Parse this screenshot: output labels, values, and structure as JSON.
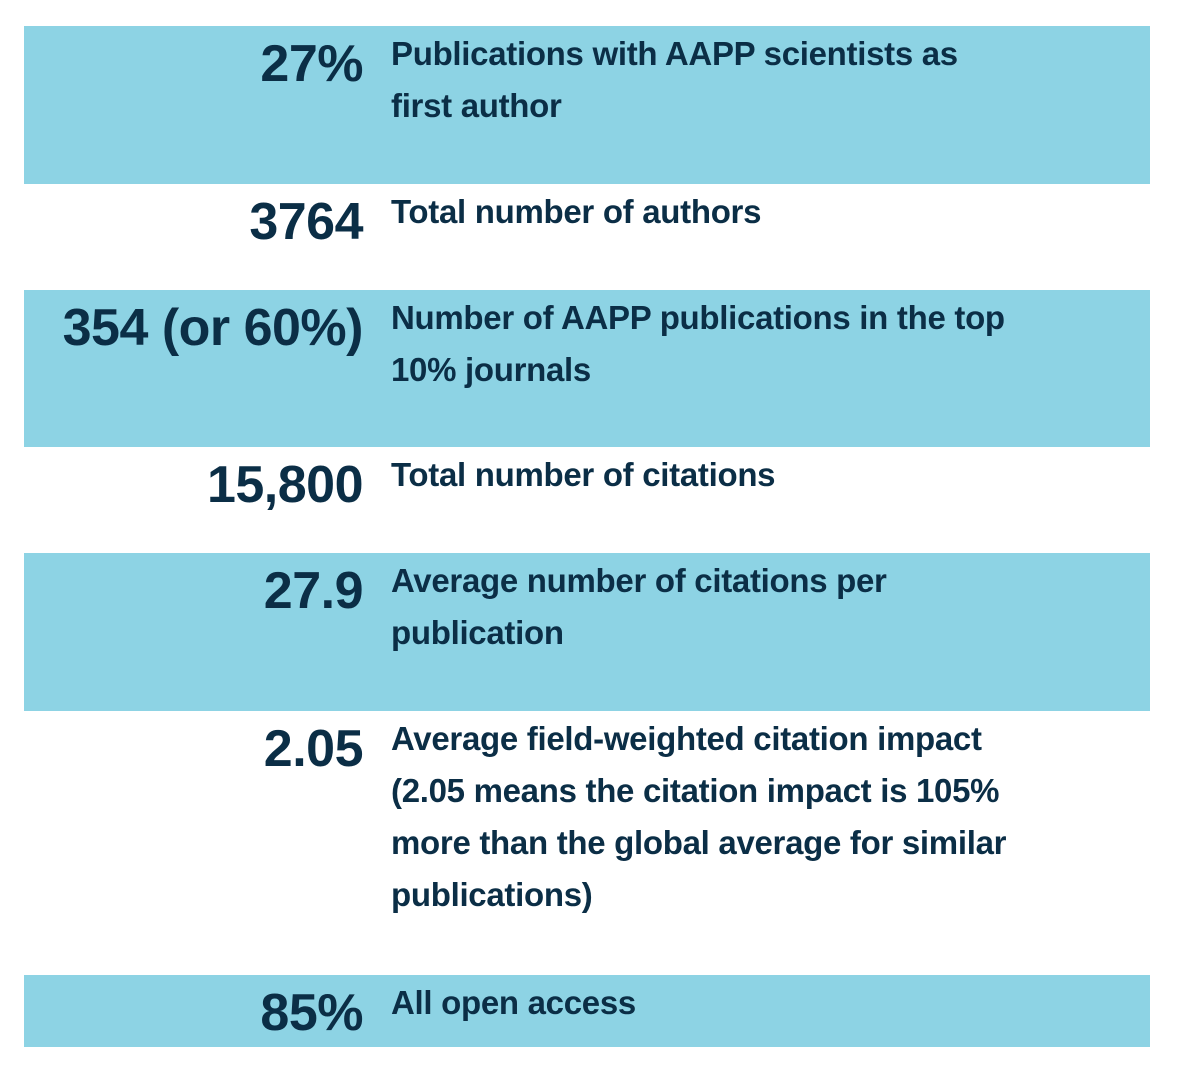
{
  "colors": {
    "highlight": "#8dd3e4",
    "text": "#0b2e46"
  },
  "rows": [
    {
      "value": "27%",
      "label_lines": [
        "Publications with AAPP scientists as",
        "first author"
      ]
    },
    {
      "value": "3764",
      "label_lines": [
        "Total number of authors"
      ]
    },
    {
      "value": "354 (or 60%)",
      "label_lines": [
        "Number of AAPP publications in the top",
        "10% journals"
      ]
    },
    {
      "value": "15,800",
      "label_lines": [
        "Total number of citations"
      ]
    },
    {
      "value": "27.9",
      "label_lines": [
        "Average number of citations per",
        "publication"
      ]
    },
    {
      "value": "2.05",
      "label_lines": [
        "Average field-weighted citation impact",
        "(2.05 means the citation impact is 105%",
        "more than the global average for similar",
        "publications)"
      ]
    },
    {
      "value": "85%",
      "label_lines": [
        "All open access"
      ]
    }
  ]
}
